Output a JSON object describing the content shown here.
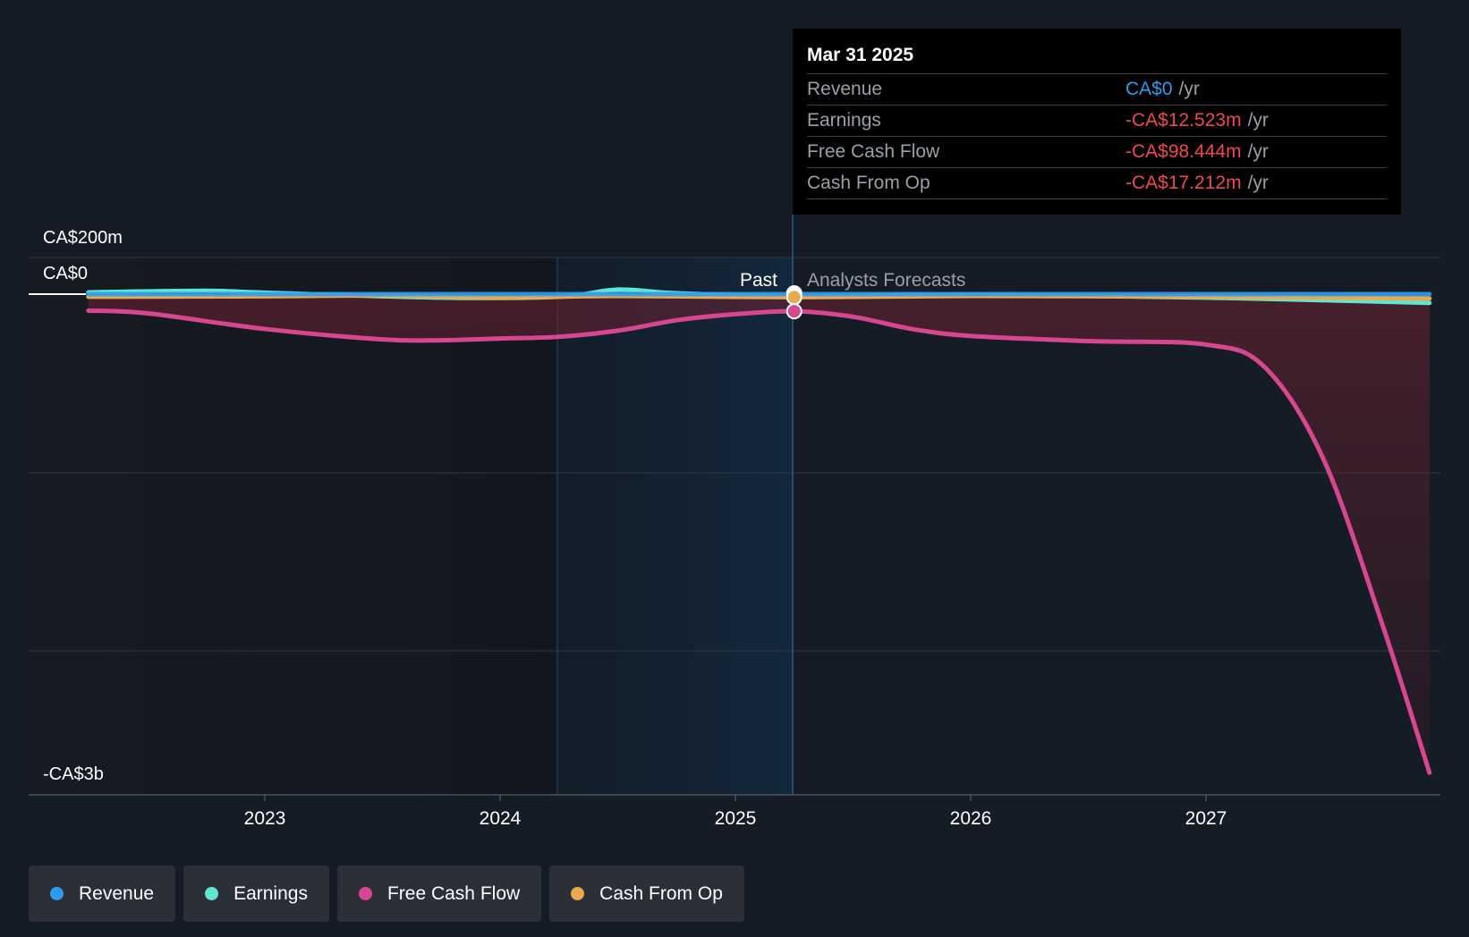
{
  "chart_data": {
    "type": "line",
    "x_ticks": [
      "2023",
      "2024",
      "2025",
      "2026",
      "2027"
    ],
    "y_labels": {
      "top": "CA$200m",
      "zero": "CA$0",
      "bottom": "-CA$3b"
    },
    "ylim": [
      -2800,
      200
    ],
    "divider_labels": {
      "past": "Past",
      "forecast": "Analysts Forecasts"
    },
    "series": [
      {
        "name": "Revenue",
        "color": "#2d9cf0",
        "points": [
          [
            2022.25,
            0
          ],
          [
            2023.0,
            0
          ],
          [
            2024.0,
            0
          ],
          [
            2025.25,
            0
          ],
          [
            2026.0,
            0
          ],
          [
            2027.0,
            0
          ],
          [
            2027.95,
            0
          ]
        ]
      },
      {
        "name": "Earnings",
        "color": "#5ee6d0",
        "points": [
          [
            2022.25,
            10
          ],
          [
            2022.75,
            18
          ],
          [
            2023.0,
            8
          ],
          [
            2023.75,
            -20
          ],
          [
            2024.25,
            -15
          ],
          [
            2024.5,
            25
          ],
          [
            2024.75,
            5
          ],
          [
            2025.25,
            -12.5
          ],
          [
            2026.0,
            -5
          ],
          [
            2027.0,
            -20
          ],
          [
            2027.95,
            -50
          ]
        ]
      },
      {
        "name": "Free Cash Flow",
        "color": "#d6478f",
        "points": [
          [
            2022.25,
            -95
          ],
          [
            2022.5,
            -110
          ],
          [
            2023.0,
            -200
          ],
          [
            2023.5,
            -260
          ],
          [
            2023.75,
            -265
          ],
          [
            2024.0,
            -255
          ],
          [
            2024.25,
            -245
          ],
          [
            2024.5,
            -210
          ],
          [
            2024.75,
            -150
          ],
          [
            2025.0,
            -115
          ],
          [
            2025.25,
            -98.4
          ],
          [
            2025.5,
            -130
          ],
          [
            2025.75,
            -200
          ],
          [
            2026.0,
            -240
          ],
          [
            2026.5,
            -270
          ],
          [
            2027.0,
            -290
          ],
          [
            2027.25,
            -420
          ],
          [
            2027.5,
            -950
          ],
          [
            2027.75,
            -1900
          ],
          [
            2027.95,
            -2750
          ]
        ]
      },
      {
        "name": "Cash From Op",
        "color": "#e8a94f",
        "points": [
          [
            2022.25,
            -15
          ],
          [
            2023.0,
            -12
          ],
          [
            2023.5,
            -8
          ],
          [
            2024.0,
            -20
          ],
          [
            2024.5,
            -10
          ],
          [
            2025.25,
            -17.2
          ],
          [
            2026.0,
            -10
          ],
          [
            2027.0,
            -15
          ],
          [
            2027.95,
            -25
          ]
        ]
      }
    ]
  },
  "tooltip": {
    "date": "Mar 31 2025",
    "unit": "/yr",
    "rows": [
      {
        "label": "Revenue",
        "value": "CA$0",
        "color": "#2d9cf0"
      },
      {
        "label": "Earnings",
        "value": "-CA$12.523m",
        "color": "#f0484d"
      },
      {
        "label": "Free Cash Flow",
        "value": "-CA$98.444m",
        "color": "#f0484d"
      },
      {
        "label": "Cash From Op",
        "value": "-CA$17.212m",
        "color": "#f0484d"
      }
    ]
  },
  "legend": [
    {
      "label": "Revenue",
      "color": "#2d9cf0"
    },
    {
      "label": "Earnings",
      "color": "#5ee6d0"
    },
    {
      "label": "Free Cash Flow",
      "color": "#d6478f"
    },
    {
      "label": "Cash From Op",
      "color": "#e8a94f"
    }
  ]
}
